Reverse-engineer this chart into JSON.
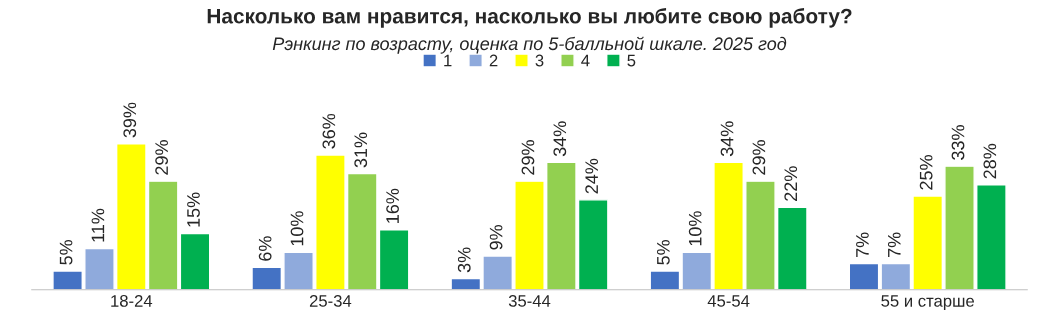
{
  "chart_data": {
    "type": "bar",
    "title": "Насколько вам нравится, насколько вы любите свою работу?",
    "subtitle": "Рэнкинг по возрасту, оценка по 5-балльной шкале. 2025 год",
    "categories": [
      "18-24",
      "25-34",
      "35-44",
      "45-54",
      "55 и старше"
    ],
    "series": [
      {
        "name": "1",
        "color": "#4472c4",
        "values": [
          5,
          6,
          3,
          5,
          7
        ],
        "value_labels": [
          "5%",
          "6%",
          "3%",
          "5%",
          "7%"
        ]
      },
      {
        "name": "2",
        "color": "#8faadc",
        "values": [
          11,
          10,
          9,
          10,
          7
        ],
        "value_labels": [
          "11%",
          "10%",
          "9%",
          "10%",
          "7%"
        ]
      },
      {
        "name": "3",
        "color": "#ffff00",
        "values": [
          39,
          36,
          29,
          34,
          25
        ],
        "value_labels": [
          "39%",
          "36%",
          "29%",
          "34%",
          "25%"
        ]
      },
      {
        "name": "4",
        "color": "#92d050",
        "values": [
          29,
          31,
          34,
          29,
          33
        ],
        "value_labels": [
          "29%",
          "31%",
          "34%",
          "29%",
          "33%"
        ]
      },
      {
        "name": "5",
        "color": "#00b050",
        "values": [
          15,
          16,
          24,
          22,
          28
        ],
        "value_labels": [
          "15%",
          "16%",
          "24%",
          "22%",
          "28%"
        ]
      }
    ],
    "legend": "top",
    "grid": false,
    "tick_labels": "x"
  }
}
